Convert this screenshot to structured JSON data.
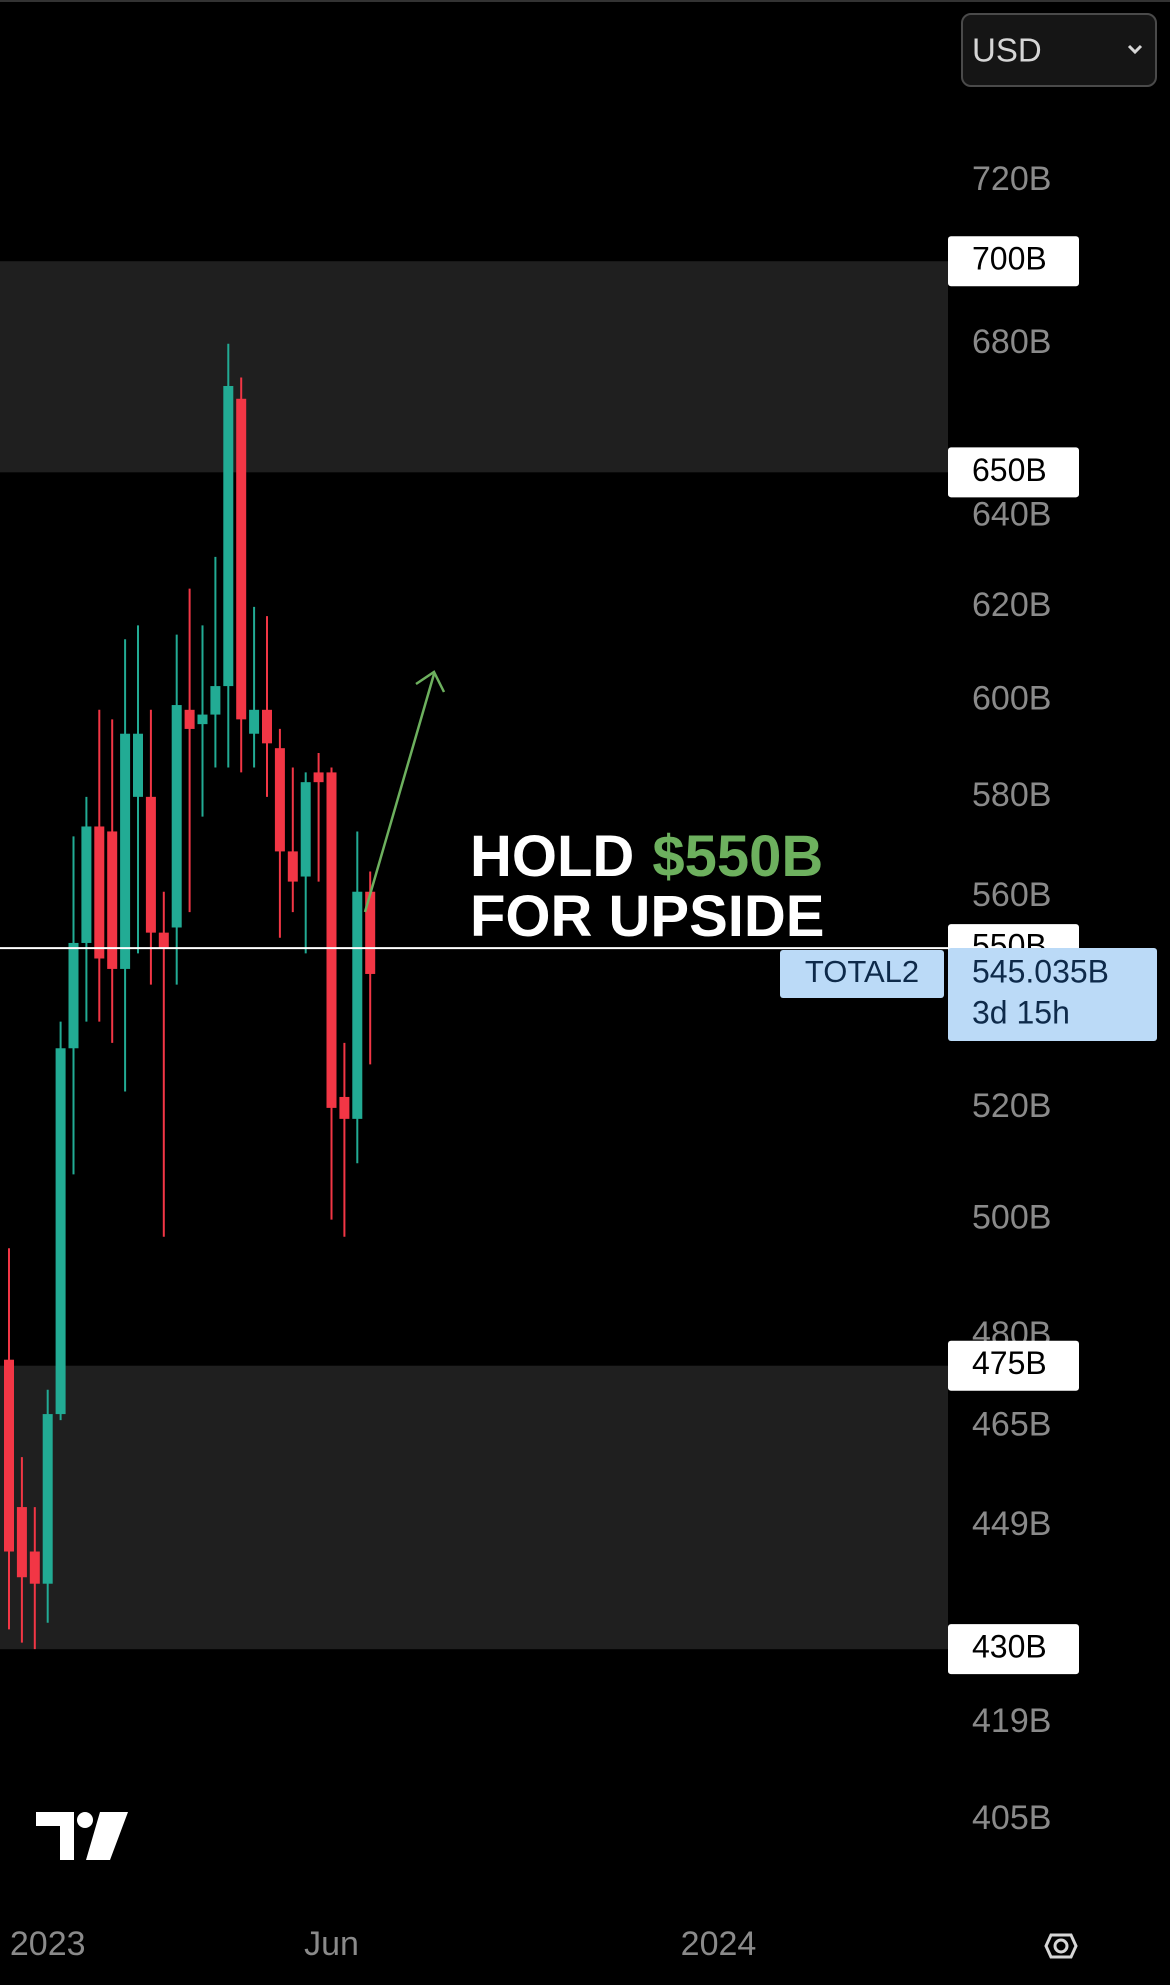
{
  "chart_data": {
    "type": "candlestick",
    "currency": "USD",
    "categories": [
      null,
      null,
      null,
      null,
      null,
      null,
      null,
      null,
      null,
      null,
      null,
      null,
      null,
      null,
      null,
      null,
      null,
      null,
      null,
      null,
      null,
      null,
      null,
      null,
      null,
      null,
      null,
      null,
      null
    ],
    "open": [
      476,
      452,
      445,
      440,
      467,
      531,
      551,
      574,
      573,
      546,
      580,
      580,
      553,
      554,
      598,
      595,
      597,
      603,
      667,
      593,
      598,
      590,
      569,
      564,
      585,
      585,
      522,
      518,
      561
    ],
    "high": [
      495,
      460,
      452,
      471,
      536,
      572,
      580,
      598,
      596,
      613,
      616,
      598,
      561,
      614,
      624,
      616,
      631,
      680,
      672,
      620,
      618,
      594,
      586,
      585,
      589,
      586,
      532,
      573,
      565
    ],
    "low": [
      433,
      431,
      430,
      434,
      466,
      508,
      536,
      536,
      532,
      523,
      549,
      543,
      497,
      543,
      557,
      576,
      586,
      586,
      585,
      586,
      580,
      552,
      557,
      549,
      563,
      500,
      497,
      510,
      528
    ],
    "close": [
      445,
      441,
      440,
      467,
      531,
      551,
      574,
      548,
      546,
      593,
      593,
      553,
      550,
      599,
      594,
      597,
      603,
      670,
      596,
      598,
      591,
      569,
      563,
      583,
      583,
      520,
      518,
      561,
      545.035
    ],
    "up_color": "#22ab94",
    "down_color": "#f23645",
    "log_scale": true,
    "grid": false,
    "ylim": [
      395,
      760
    ],
    "yticks": [
      {
        "value": 720,
        "label": "720B"
      },
      {
        "value": 680,
        "label": "680B"
      },
      {
        "value": 640,
        "label": "640B"
      },
      {
        "value": 620,
        "label": "620B"
      },
      {
        "value": 600,
        "label": "600B"
      },
      {
        "value": 580,
        "label": "580B"
      },
      {
        "value": 560,
        "label": "560B"
      },
      {
        "value": 520,
        "label": "520B"
      },
      {
        "value": 500,
        "label": "500B"
      },
      {
        "value": 480,
        "label": "480B"
      },
      {
        "value": 465,
        "label": "465B"
      },
      {
        "value": 449,
        "label": "449B"
      },
      {
        "value": 419,
        "label": "419B"
      },
      {
        "value": 405,
        "label": "405B"
      }
    ],
    "xticks": [
      {
        "value": 3,
        "label": "2023"
      },
      {
        "value": 25,
        "label": "Jun"
      },
      {
        "value": 55,
        "label": "2024"
      }
    ],
    "zones": [
      {
        "low": 650,
        "high": 700
      },
      {
        "low": 430,
        "high": 475
      }
    ],
    "level_labels": [
      {
        "value": 700,
        "label": "700B"
      },
      {
        "value": 650,
        "label": "650B"
      },
      {
        "value": 475,
        "label": "475B"
      },
      {
        "value": 430,
        "label": "430B"
      }
    ],
    "hline": {
      "value": 550,
      "label": "550B"
    },
    "last_price": {
      "symbol": "TOTAL2",
      "value": 545.035,
      "label": "545.035B",
      "countdown": "3d 15h"
    },
    "annotation": {
      "line1": "HOLD",
      "highlight": "$550B",
      "line2": "FOR UPSIDE"
    }
  }
}
